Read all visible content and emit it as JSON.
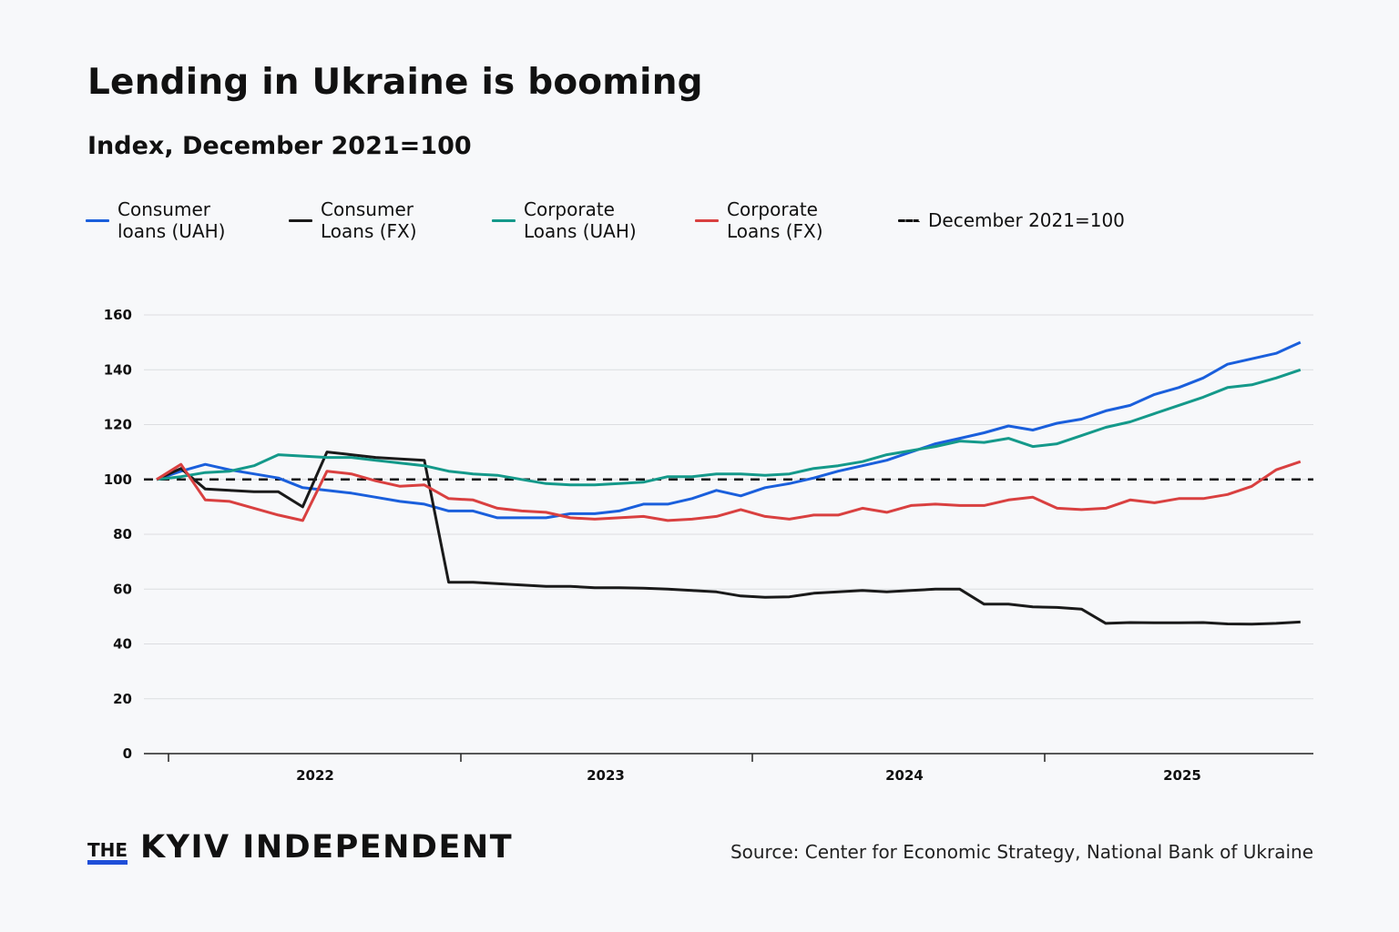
{
  "title": "Lending in Ukraine is booming",
  "subtitle": "Index, December 2021=100",
  "logo": {
    "the": "THE",
    "main": "KYIV INDEPENDENT"
  },
  "source": "Source: Center for Economic Strategy, National Bank of Ukraine",
  "colors": {
    "background": "#f7f8fa",
    "grid": "#dcdde0"
  },
  "chart_data": {
    "type": "line",
    "title": "Lending in Ukraine is booming",
    "subtitle": "Index, December 2021=100",
    "x_start": "2021-12",
    "x_end": "2025-11",
    "x_frequency": "monthly",
    "x_ticks": [
      "2022",
      "2023",
      "2024",
      "2025"
    ],
    "ylim": [
      0,
      160
    ],
    "y_ticks": [
      0,
      20,
      40,
      60,
      80,
      100,
      120,
      140,
      160
    ],
    "grid": "horizontal",
    "legend_position": "top-left",
    "reference_line": {
      "name": "December 2021=100",
      "value": 100,
      "style": "dashed",
      "color": "#111111"
    },
    "series": [
      {
        "name": "Consumer loans (UAH)",
        "color": "#1a5fdc",
        "values": [
          100,
          103,
          105.5,
          103.5,
          102,
          100.5,
          97,
          96,
          95,
          93.5,
          92,
          91,
          88.5,
          88.5,
          86,
          86,
          86,
          87.5,
          87.5,
          88.5,
          91,
          91,
          93,
          96,
          94,
          97,
          98.5,
          100.5,
          103,
          105,
          107,
          110,
          113,
          115,
          117,
          119.5,
          118,
          120.5,
          122,
          125,
          127,
          131,
          133.5,
          137,
          142,
          144,
          146,
          150
        ]
      },
      {
        "name": "Consumer Loans (FX)",
        "color": "#1a1a1a",
        "values": [
          100,
          104,
          96.5,
          96,
          95.5,
          95.5,
          90,
          110,
          109,
          108,
          107.5,
          107,
          62.5,
          62.5,
          62,
          61.5,
          61,
          61,
          60.5,
          60.5,
          60.3,
          60,
          59.5,
          59,
          57.5,
          57,
          57.2,
          58.5,
          59,
          59.5,
          59,
          59.5,
          60,
          60,
          54.5,
          54.5,
          53.5,
          53.3,
          52.7,
          47.5,
          47.8,
          47.7,
          47.7,
          47.8,
          47.3,
          47.2,
          47.5,
          48
        ]
      },
      {
        "name": "Corporate Loans (UAH)",
        "color": "#14998a",
        "values": [
          100,
          101,
          102.5,
          103,
          105,
          109,
          108.5,
          108,
          108,
          107,
          106,
          105,
          103,
          102,
          101.5,
          100,
          98.5,
          98,
          98,
          98.5,
          99,
          101,
          101,
          102,
          102,
          101.5,
          102,
          104,
          105,
          106.5,
          109,
          110.5,
          112,
          114,
          113.5,
          115,
          112,
          113,
          116,
          119,
          121,
          124,
          127,
          130,
          133.5,
          134.5,
          137,
          140
        ]
      },
      {
        "name": "Corporate Loans (FX)",
        "color": "#d94040",
        "values": [
          100,
          105.5,
          92.5,
          92,
          89.5,
          87,
          85,
          103,
          102,
          99.5,
          97.5,
          98,
          93,
          92.5,
          89.5,
          88.5,
          88,
          86,
          85.5,
          86,
          86.5,
          85,
          85.5,
          86.5,
          89,
          86.5,
          85.5,
          87,
          87,
          89.5,
          88,
          90.5,
          91,
          90.5,
          90.5,
          92.5,
          93.5,
          89.5,
          89,
          89.5,
          92.5,
          91.5,
          93,
          93,
          94.5,
          97.5,
          103.5,
          106.5
        ]
      }
    ]
  }
}
